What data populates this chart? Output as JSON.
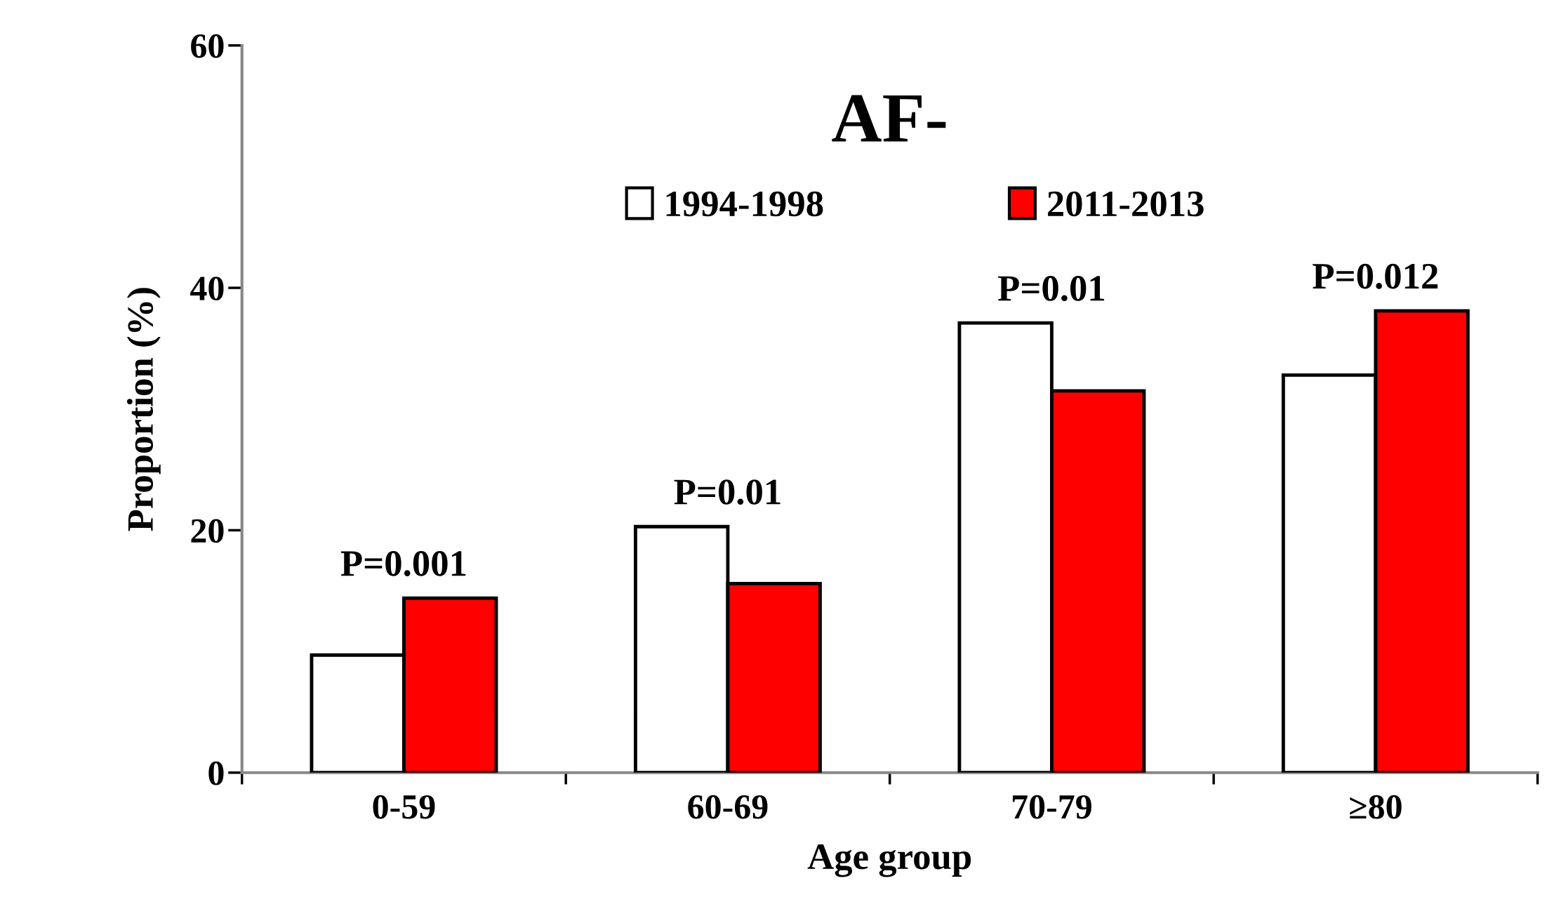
{
  "chart_data": {
    "type": "bar",
    "title": "AF-",
    "xlabel": "Age group",
    "ylabel": "Proportion (%)",
    "categories": [
      "0-59",
      "60-69",
      "70-79",
      "≥80"
    ],
    "series": [
      {
        "name": "1994-1998",
        "color": "#ffffff",
        "values": [
          9.7,
          20.3,
          37.1,
          32.8
        ]
      },
      {
        "name": "2011-2013",
        "color": "#ff0000",
        "values": [
          14.4,
          15.6,
          31.5,
          38.1
        ]
      }
    ],
    "annotations": [
      "P=0.001",
      "P=0.01",
      "P=0.01",
      "P=0.012"
    ],
    "ylim": [
      0,
      60
    ],
    "yticks": [
      0,
      20,
      40,
      60
    ],
    "grid": false,
    "legend": "top"
  }
}
